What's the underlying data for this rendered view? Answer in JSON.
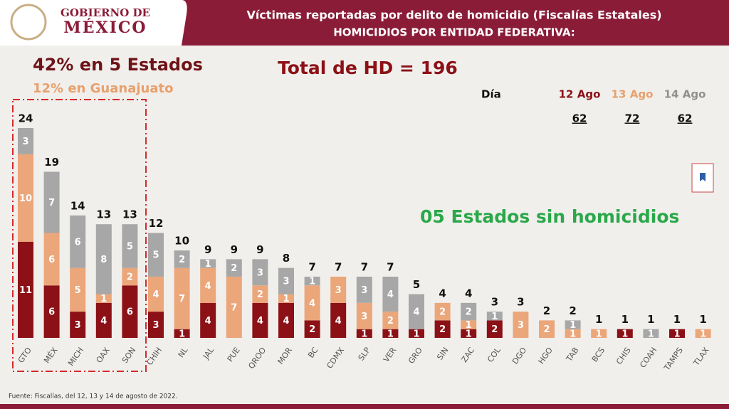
{
  "header": {
    "logo_top": "GOBIERNO DE",
    "logo_bottom": "MÉXICO"
  },
  "chart_data": {
    "type": "bar",
    "stacked": true,
    "title": "Víctimas reportadas por delito de homicidio (Fiscalías Estatales)",
    "subtitle": "HOMICIDIOS POR ENTIDAD FEDERATIVA:",
    "annotations": {
      "top5": "42% en 5 Estados",
      "gto": "12% en Guanajuato",
      "total": "Total de HD = 196",
      "no_homicide": "05 Estados sin homicidios"
    },
    "legend_title": "Día",
    "categories": [
      "GTO",
      "MÉX",
      "MICH",
      "OAX",
      "SON",
      "CHIH",
      "NL",
      "JAL",
      "PUE",
      "QROO",
      "MOR",
      "BC",
      "CDMX",
      "SLP",
      "VER",
      "GRO",
      "SIN",
      "ZAC",
      "COL",
      "DGO",
      "HGO",
      "TAB",
      "BCS",
      "CHIS",
      "COAH",
      "TAMPS",
      "TLAX"
    ],
    "series": [
      {
        "name": "12 Ago",
        "color": "#8c1117",
        "total": 62,
        "values": [
          11,
          6,
          3,
          4,
          6,
          3,
          1,
          4,
          0,
          4,
          4,
          2,
          4,
          1,
          1,
          1,
          2,
          1,
          2,
          0,
          0,
          0,
          0,
          1,
          0,
          1,
          0
        ]
      },
      {
        "name": "13 Ago",
        "color": "#eba67a",
        "total": 72,
        "values": [
          10,
          6,
          5,
          1,
          2,
          4,
          7,
          4,
          7,
          2,
          1,
          4,
          3,
          3,
          2,
          0,
          2,
          1,
          0,
          3,
          2,
          1,
          1,
          0,
          0,
          0,
          1
        ]
      },
      {
        "name": "14 Ago",
        "color": "#a7a7a7",
        "total": 62,
        "values": [
          3,
          7,
          6,
          8,
          5,
          5,
          2,
          1,
          2,
          3,
          3,
          1,
          0,
          3,
          4,
          4,
          0,
          2,
          1,
          0,
          0,
          1,
          0,
          0,
          1,
          0,
          0
        ]
      }
    ],
    "totals": [
      24,
      19,
      14,
      13,
      13,
      12,
      10,
      9,
      9,
      9,
      8,
      7,
      7,
      7,
      7,
      5,
      4,
      4,
      3,
      3,
      2,
      2,
      1,
      1,
      1,
      1,
      1
    ]
  },
  "footer": "Fuente: Fiscalías, del 12, 13 y 14 de agosto de 2022."
}
